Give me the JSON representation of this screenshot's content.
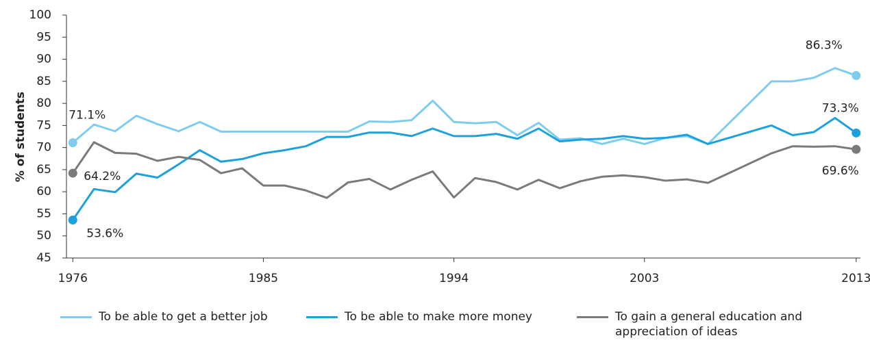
{
  "chart_data": {
    "type": "line",
    "y_label": "% of students",
    "x": [
      1976,
      1977,
      1978,
      1979,
      1980,
      1981,
      1982,
      1983,
      1984,
      1985,
      1986,
      1987,
      1988,
      1989,
      1990,
      1991,
      1992,
      1993,
      1994,
      1995,
      1996,
      1997,
      1998,
      1999,
      2000,
      2001,
      2002,
      2003,
      2004,
      2005,
      2006,
      2009,
      2010,
      2011,
      2012,
      2013
    ],
    "xlim": [
      1975.7,
      2013.2
    ],
    "xticks": [
      1976,
      1985,
      1994,
      2003,
      2013
    ],
    "ylim": [
      45,
      100
    ],
    "yticks": [
      45,
      50,
      55,
      60,
      65,
      70,
      75,
      80,
      85,
      90,
      95,
      100
    ],
    "series": [
      {
        "name": "To be able to get a better job",
        "color": "#7fcdee",
        "values": [
          71.1,
          75.2,
          73.7,
          77.2,
          75.3,
          73.7,
          75.8,
          73.6,
          73.6,
          73.6,
          73.6,
          73.6,
          73.6,
          73.6,
          75.9,
          75.8,
          76.2,
          80.6,
          75.8,
          75.5,
          75.8,
          72.8,
          75.6,
          71.8,
          72.1,
          70.8,
          72.0,
          70.8,
          72.2,
          72.6,
          70.8,
          85.0,
          85.0,
          85.8,
          88.0,
          86.3
        ],
        "value_labels": [
          "71.1%",
          null,
          null,
          null,
          null,
          null,
          null,
          null,
          null,
          null,
          null,
          null,
          null,
          null,
          null,
          null,
          null,
          null,
          null,
          null,
          null,
          null,
          null,
          null,
          null,
          null,
          null,
          null,
          null,
          null,
          null,
          null,
          null,
          null,
          null,
          "86.3%"
        ]
      },
      {
        "name": "To be able to make more money",
        "color": "#1ba1db",
        "values": [
          53.6,
          60.6,
          59.9,
          64.1,
          63.2,
          66.2,
          69.4,
          66.8,
          67.4,
          68.7,
          69.4,
          70.3,
          72.4,
          72.4,
          73.4,
          73.4,
          72.6,
          74.3,
          72.6,
          72.6,
          73.1,
          72.0,
          74.3,
          71.4,
          71.8,
          72.0,
          72.6,
          72.0,
          72.2,
          72.9,
          70.8,
          75.0,
          72.8,
          73.5,
          76.7,
          73.3
        ],
        "value_labels": [
          "53.6%",
          null,
          null,
          null,
          null,
          null,
          null,
          null,
          null,
          null,
          null,
          null,
          null,
          null,
          null,
          null,
          null,
          null,
          null,
          null,
          null,
          null,
          null,
          null,
          null,
          null,
          null,
          null,
          null,
          null,
          null,
          null,
          null,
          null,
          null,
          "73.3%"
        ]
      },
      {
        "name": "To gain a general education and appreciation of ideas",
        "color": "#7a7a7a",
        "values": [
          64.2,
          71.2,
          68.8,
          68.6,
          67.0,
          67.9,
          67.2,
          64.2,
          65.3,
          61.4,
          61.4,
          60.3,
          58.6,
          62.1,
          62.9,
          60.5,
          62.7,
          64.6,
          58.7,
          63.1,
          62.2,
          60.5,
          62.7,
          60.8,
          62.4,
          63.4,
          63.7,
          63.3,
          62.5,
          62.8,
          62.0,
          68.7,
          70.3,
          70.2,
          70.3,
          69.6
        ],
        "value_labels": [
          "64.2%",
          null,
          null,
          null,
          null,
          null,
          null,
          null,
          null,
          null,
          null,
          null,
          null,
          null,
          null,
          null,
          null,
          null,
          null,
          null,
          null,
          null,
          null,
          null,
          null,
          null,
          null,
          null,
          null,
          null,
          null,
          null,
          null,
          null,
          null,
          "69.6%"
        ]
      }
    ]
  }
}
